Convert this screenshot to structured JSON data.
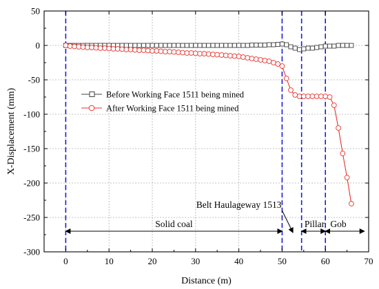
{
  "chart_data": {
    "type": "line",
    "xlabel": "Distance (m)",
    "ylabel": "X-Displacement (mm)",
    "xlim": [
      -5,
      70
    ],
    "ylim": [
      -300,
      50
    ],
    "xticks": [
      0,
      10,
      20,
      30,
      40,
      50,
      60,
      70
    ],
    "yticks": [
      50,
      0,
      -50,
      -100,
      -150,
      -200,
      -250,
      -300
    ],
    "grid": true,
    "legend_position": "middle-left",
    "series": [
      {
        "name": "Before Working Face 1511 being mined",
        "color": "#404040",
        "marker": "square",
        "x": [
          0,
          1,
          2,
          3,
          4,
          5,
          6,
          7,
          8,
          9,
          10,
          11,
          12,
          13,
          14,
          15,
          16,
          17,
          18,
          19,
          20,
          21,
          22,
          23,
          24,
          25,
          26,
          27,
          28,
          29,
          30,
          31,
          32,
          33,
          34,
          35,
          36,
          37,
          38,
          39,
          40,
          41,
          42,
          43,
          44,
          45,
          46,
          47,
          48,
          49,
          50,
          51,
          52,
          53,
          54,
          55,
          56,
          57,
          58,
          59,
          60,
          61,
          62,
          63,
          64,
          65,
          66
        ],
        "y": [
          0,
          0,
          0,
          0,
          0,
          0,
          0,
          0,
          0,
          0,
          0,
          0,
          0,
          0,
          0,
          0,
          0,
          0,
          0,
          0,
          0,
          0,
          0,
          0,
          0,
          0,
          0,
          0,
          0,
          0,
          0,
          0,
          0,
          0,
          0,
          0,
          0,
          0,
          0,
          0,
          0,
          0,
          0,
          0.5,
          0.5,
          0.5,
          0.5,
          1,
          1,
          1.5,
          2,
          1,
          -2,
          -4,
          -6,
          -5,
          -4,
          -4,
          -3,
          -2,
          -1,
          -1,
          -1,
          0,
          0,
          0,
          0
        ]
      },
      {
        "name": "After Working Face 1511 being mined",
        "color": "#e8322c",
        "marker": "circle",
        "x": [
          0,
          1,
          2,
          3,
          4,
          5,
          6,
          7,
          8,
          9,
          10,
          11,
          12,
          13,
          14,
          15,
          16,
          17,
          18,
          19,
          20,
          21,
          22,
          23,
          24,
          25,
          26,
          27,
          28,
          29,
          30,
          31,
          32,
          33,
          34,
          35,
          36,
          37,
          38,
          39,
          40,
          41,
          42,
          43,
          44,
          45,
          46,
          47,
          48,
          49,
          50,
          51,
          52,
          53,
          54,
          55,
          56,
          57,
          58,
          59,
          60,
          61,
          62,
          63,
          64,
          65,
          66
        ],
        "y": [
          0,
          -1,
          -1.5,
          -2,
          -2.5,
          -3,
          -3,
          -3.5,
          -4,
          -4,
          -4.5,
          -5,
          -5,
          -5.5,
          -6,
          -6,
          -6.5,
          -7,
          -7,
          -7.5,
          -8,
          -8,
          -8.5,
          -9,
          -9,
          -9.5,
          -10,
          -10.5,
          -11,
          -11,
          -11.5,
          -12,
          -12,
          -12.5,
          -13,
          -13.5,
          -14,
          -14.5,
          -15,
          -15.5,
          -16,
          -17,
          -18,
          -19,
          -20,
          -21,
          -22,
          -23,
          -25,
          -27,
          -30,
          -48,
          -65,
          -72,
          -74,
          -74,
          -74,
          -74,
          -74,
          -74,
          -74,
          -75,
          -87,
          -120,
          -157,
          -192,
          -230
        ]
      }
    ],
    "vlines": [
      0,
      50,
      54.5,
      60
    ],
    "vline_color": "#1a1adc",
    "annotations": [
      {
        "text": "Belt Haulageway 1513",
        "x": 40,
        "y": -232
      },
      {
        "text": "Solid coal",
        "x": 25,
        "y": -260
      },
      {
        "text": "Pillar",
        "x": 57.5,
        "y": -260
      },
      {
        "text": "Gob",
        "x": 63,
        "y": -260
      }
    ],
    "spans": [
      {
        "label": "Solid coal",
        "from": 0,
        "to": 50,
        "y": -270
      },
      {
        "label": "Pillar",
        "from": 54.5,
        "to": 60,
        "y": -270
      },
      {
        "label": "Gob",
        "from": 60,
        "to": 69,
        "y": -270
      }
    ],
    "arrow": {
      "from_x": 50,
      "from_y": -240,
      "to_x": 52.5,
      "to_y": -272
    }
  }
}
